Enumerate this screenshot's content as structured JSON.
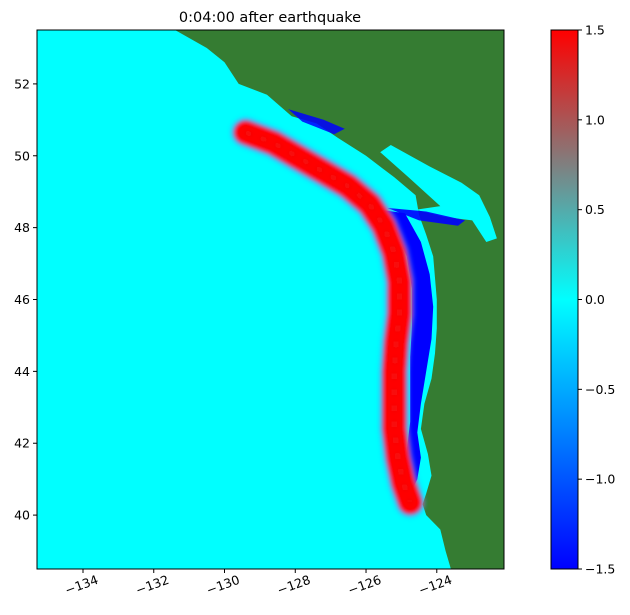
{
  "chart_data": {
    "type": "heatmap",
    "title": "0:04:00 after earthquake",
    "xlabel": "",
    "ylabel": "",
    "xlim": [
      -135.3,
      -122.1
    ],
    "ylim": [
      38.5,
      53.5
    ],
    "x_ticks": [
      -134,
      -132,
      -130,
      -128,
      -126,
      -124
    ],
    "x_tick_labels": [
      "−134",
      "−132",
      "−130",
      "−128",
      "−126",
      "−124"
    ],
    "y_ticks": [
      40,
      42,
      44,
      46,
      48,
      50,
      52
    ],
    "y_tick_labels": [
      "40",
      "42",
      "44",
      "46",
      "48",
      "50",
      "52"
    ],
    "grid": false,
    "colorbar": {
      "vmin": -1.5,
      "vmax": 1.5,
      "ticks": [
        -1.5,
        -1.0,
        -0.5,
        0.0,
        0.5,
        1.0,
        1.5
      ],
      "tick_labels": [
        "−1.5",
        "−1.0",
        "−0.5",
        "0.0",
        "0.5",
        "1.0",
        "1.5"
      ],
      "colors": [
        "#0000ff",
        "#00ffff",
        "#ff0000"
      ]
    },
    "background_value": 0.0,
    "land_color": "#357c32",
    "positive_front_crest": [
      [
        -129.4,
        50.65
      ],
      [
        -128.6,
        50.35
      ],
      [
        -127.9,
        49.95
      ],
      [
        -127.2,
        49.55
      ],
      [
        -126.5,
        49.15
      ],
      [
        -125.9,
        48.65
      ],
      [
        -125.5,
        48.05
      ],
      [
        -125.2,
        47.3
      ],
      [
        -125.05,
        46.5
      ],
      [
        -125.05,
        45.6
      ],
      [
        -125.15,
        44.8
      ],
      [
        -125.2,
        44.0
      ],
      [
        -125.2,
        43.2
      ],
      [
        -125.2,
        42.4
      ],
      [
        -125.1,
        41.6
      ],
      [
        -124.95,
        40.9
      ],
      [
        -124.75,
        40.35
      ]
    ],
    "positive_front_value": 1.5,
    "negative_trough_value": -1.5
  }
}
